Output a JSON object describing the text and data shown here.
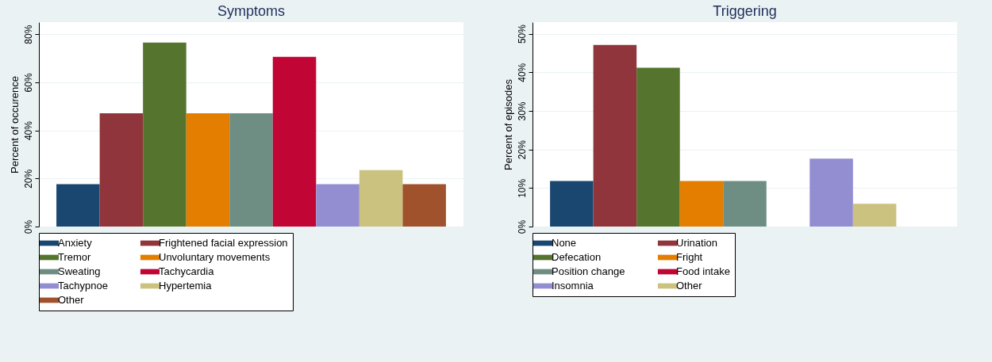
{
  "chart_data": [
    {
      "type": "bar",
      "title": "Symptoms",
      "ylabel": "Percent of occurence",
      "categories": [
        null
      ],
      "tick_labels": "y",
      "grid": "y",
      "legend": "bottom",
      "ylim": [
        0,
        85
      ],
      "yticks": [
        {
          "value": 0,
          "label": "0%"
        },
        {
          "value": 20,
          "label": "20%"
        },
        {
          "value": 40,
          "label": "40%"
        },
        {
          "value": 60,
          "label": "60%"
        },
        {
          "value": 80,
          "label": "80%"
        }
      ],
      "series": [
        {
          "name": "Anxiety",
          "color": "#1a476f",
          "values": [
            17.6
          ]
        },
        {
          "name": "Frightened facial expression",
          "color": "#90353b",
          "values": [
            47.1
          ]
        },
        {
          "name": "Tremor",
          "color": "#55752f",
          "values": [
            76.5
          ]
        },
        {
          "name": "Unvoluntary movements",
          "color": "#e37e00",
          "values": [
            47.1
          ]
        },
        {
          "name": "Sweating",
          "color": "#6e8e84",
          "values": [
            47.1
          ]
        },
        {
          "name": "Tachycardia",
          "color": "#c10534",
          "values": [
            70.6
          ]
        },
        {
          "name": "Tachypnoe",
          "color": "#938dd2",
          "values": [
            17.6
          ]
        },
        {
          "name": "Hypertemia",
          "color": "#cac27e",
          "values": [
            23.5
          ]
        },
        {
          "name": "Other",
          "color": "#a0522d",
          "values": [
            17.6
          ]
        }
      ]
    },
    {
      "type": "bar",
      "title": "Triggering",
      "ylabel": "Percent of episodes",
      "categories": [
        null
      ],
      "tick_labels": "y",
      "grid": "y",
      "legend": "bottom",
      "ylim": [
        0,
        53
      ],
      "yticks": [
        {
          "value": 0,
          "label": "0%"
        },
        {
          "value": 10,
          "label": "10%"
        },
        {
          "value": 20,
          "label": "20%"
        },
        {
          "value": 30,
          "label": "30%"
        },
        {
          "value": 40,
          "label": "40%"
        },
        {
          "value": 50,
          "label": "50%"
        }
      ],
      "series": [
        {
          "name": "None",
          "color": "#1a476f",
          "values": [
            11.8
          ]
        },
        {
          "name": "Urination",
          "color": "#90353b",
          "values": [
            47.1
          ]
        },
        {
          "name": "Defecation",
          "color": "#55752f",
          "values": [
            41.2
          ]
        },
        {
          "name": "Fright",
          "color": "#e37e00",
          "values": [
            11.8
          ]
        },
        {
          "name": "Position change",
          "color": "#6e8e84",
          "values": [
            11.8
          ]
        },
        {
          "name": "Food intake",
          "color": "#c10534",
          "values": [
            0
          ]
        },
        {
          "name": "Insomnia",
          "color": "#938dd2",
          "values": [
            17.6
          ]
        },
        {
          "name": "Other",
          "color": "#cac27e",
          "values": [
            5.9
          ]
        }
      ]
    }
  ]
}
